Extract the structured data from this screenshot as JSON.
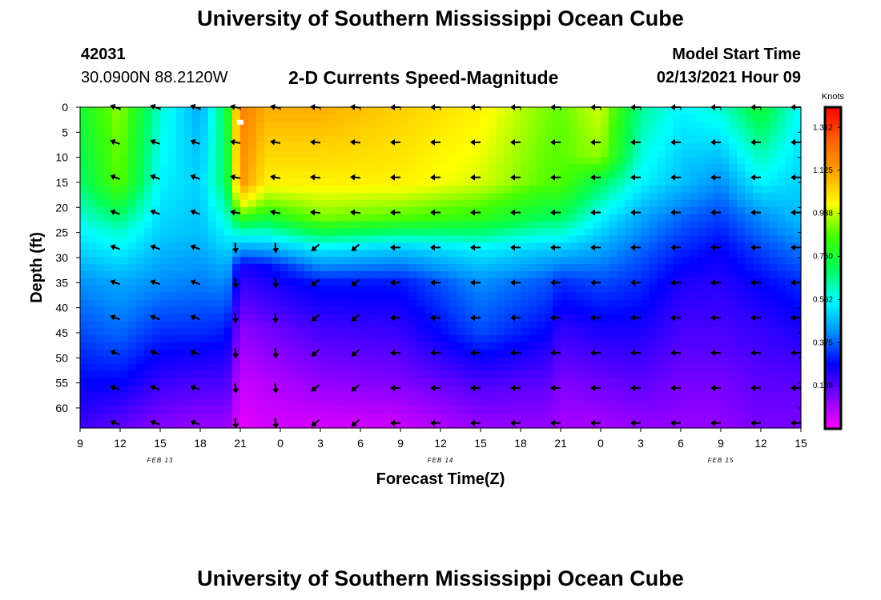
{
  "header": {
    "title": "University of Southern Mississippi Ocean Cube",
    "station_id": "42031",
    "station_location": "30.0900N 88.2120W",
    "plot_title": "2-D Currents Speed-Magnitude",
    "model_start_label": "Model Start Time",
    "model_start_value": "02/13/2021 Hour 09"
  },
  "footer": {
    "title": "University of Southern Mississippi Ocean Cube"
  },
  "chart_data": {
    "type": "heatmap",
    "title": "2-D Currents Speed-Magnitude",
    "xlabel": "Forecast Time(Z)",
    "ylabel": "Depth (ft)",
    "x_tick_labels": [
      "9",
      "12",
      "15",
      "18",
      "21",
      "0",
      "3",
      "6",
      "9",
      "12",
      "15",
      "18",
      "21",
      "0",
      "3",
      "6",
      "9",
      "12",
      "15"
    ],
    "x_hours": [
      0,
      3,
      6,
      9,
      12,
      15,
      18,
      21,
      24,
      27,
      30,
      33,
      36,
      39,
      42,
      45,
      48,
      51,
      54
    ],
    "date_labels": [
      {
        "label": "FEB 13",
        "hour": 6
      },
      {
        "label": "FEB 14",
        "hour": 27
      },
      {
        "label": "FEB 15",
        "hour": 48
      }
    ],
    "y_ticks": [
      0,
      5,
      10,
      15,
      20,
      25,
      30,
      35,
      40,
      45,
      50,
      55,
      60
    ],
    "ylim": [
      0,
      64
    ],
    "y_inverted": true,
    "colorbar": {
      "label": "Knots",
      "tick_labels": [
        "1.312",
        "1.125",
        "0.938",
        "0.750",
        "0.562",
        "0.375",
        "0.188"
      ],
      "range": [
        0,
        1.4
      ],
      "colors": [
        "#ff00ff",
        "#8000ff",
        "#0000ff",
        "#0090ff",
        "#00ffff",
        "#00ff55",
        "#44ff00",
        "#ffff00",
        "#ffa000",
        "#ff6000",
        "#ff0000"
      ]
    },
    "arrow_times": [
      3,
      6,
      9,
      12,
      15,
      18,
      21,
      24,
      27,
      30,
      33,
      36,
      39,
      42,
      45,
      48,
      51,
      54
    ],
    "arrow_depths": [
      0,
      7,
      14,
      21,
      28,
      35,
      42,
      49,
      56,
      63
    ],
    "speed_profiles": [
      {
        "hour": 0,
        "depths": [
          0,
          15,
          25,
          35,
          45,
          55,
          63
        ],
        "speeds": [
          0.75,
          0.68,
          0.55,
          0.42,
          0.35,
          0.28,
          0.22
        ]
      },
      {
        "hour": 3,
        "depths": [
          0,
          15,
          25,
          35,
          45,
          55,
          63
        ],
        "speeds": [
          0.9,
          0.86,
          0.6,
          0.45,
          0.38,
          0.28,
          0.18
        ]
      },
      {
        "hour": 6,
        "depths": [
          0,
          15,
          25,
          35,
          45,
          55,
          63
        ],
        "speeds": [
          0.6,
          0.55,
          0.5,
          0.42,
          0.32,
          0.22,
          0.14
        ]
      },
      {
        "hour": 9,
        "depths": [
          0,
          15,
          25,
          35,
          45,
          55,
          63
        ],
        "speeds": [
          0.45,
          0.5,
          0.48,
          0.4,
          0.32,
          0.2,
          0.12
        ]
      },
      {
        "hour": 11,
        "depths": [
          0,
          15,
          25,
          35,
          45,
          55,
          63
        ],
        "speeds": [
          0.72,
          0.7,
          0.55,
          0.42,
          0.3,
          0.2,
          0.12
        ]
      },
      {
        "hour": 12,
        "depths": [
          0,
          15,
          20,
          25,
          32,
          45,
          55,
          63
        ],
        "speeds": [
          1.2,
          1.15,
          0.95,
          0.6,
          0.25,
          0.12,
          0.06,
          0.03
        ]
      },
      {
        "hour": 14,
        "depths": [
          0,
          15,
          20,
          25,
          32,
          45,
          55,
          63
        ],
        "speeds": [
          1.1,
          1.0,
          0.85,
          0.6,
          0.28,
          0.15,
          0.08,
          0.05
        ]
      },
      {
        "hour": 18,
        "depths": [
          0,
          15,
          22,
          28,
          35,
          45,
          55,
          63
        ],
        "speeds": [
          1.1,
          1.0,
          0.88,
          0.55,
          0.3,
          0.2,
          0.12,
          0.05
        ]
      },
      {
        "hour": 24,
        "depths": [
          0,
          15,
          22,
          28,
          35,
          45,
          55,
          63
        ],
        "speeds": [
          1.05,
          1.0,
          0.85,
          0.5,
          0.3,
          0.22,
          0.14,
          0.06
        ]
      },
      {
        "hour": 30,
        "depths": [
          0,
          15,
          22,
          28,
          35,
          45,
          55,
          63
        ],
        "speeds": [
          1.0,
          0.95,
          0.8,
          0.55,
          0.42,
          0.35,
          0.2,
          0.12
        ]
      },
      {
        "hour": 35,
        "depths": [
          0,
          15,
          22,
          28,
          35,
          45,
          55,
          63
        ],
        "speeds": [
          0.88,
          0.85,
          0.7,
          0.5,
          0.36,
          0.28,
          0.18,
          0.12
        ]
      },
      {
        "hour": 36,
        "depths": [
          0,
          15,
          22,
          28,
          35,
          45,
          55,
          63
        ],
        "speeds": [
          0.86,
          0.85,
          0.7,
          0.5,
          0.32,
          0.22,
          0.14,
          0.1
        ]
      },
      {
        "hour": 39,
        "depths": [
          0,
          10,
          15,
          22,
          28,
          35,
          45,
          55,
          63
        ],
        "speeds": [
          0.95,
          0.9,
          0.7,
          0.55,
          0.45,
          0.35,
          0.25,
          0.16,
          0.1
        ]
      },
      {
        "hour": 42,
        "depths": [
          0,
          15,
          22,
          28,
          35,
          45,
          55,
          63
        ],
        "speeds": [
          0.65,
          0.55,
          0.45,
          0.38,
          0.32,
          0.25,
          0.18,
          0.12
        ]
      },
      {
        "hour": 45,
        "depths": [
          0,
          15,
          22,
          28,
          35,
          45,
          55,
          63
        ],
        "speeds": [
          0.55,
          0.48,
          0.38,
          0.32,
          0.25,
          0.2,
          0.15,
          0.12
        ]
      },
      {
        "hour": 48,
        "depths": [
          0,
          15,
          22,
          28,
          35,
          45,
          55,
          63
        ],
        "speeds": [
          0.6,
          0.42,
          0.34,
          0.28,
          0.24,
          0.2,
          0.15,
          0.12
        ]
      },
      {
        "hour": 51,
        "depths": [
          0,
          15,
          22,
          28,
          35,
          45,
          55,
          63
        ],
        "speeds": [
          0.75,
          0.55,
          0.42,
          0.35,
          0.28,
          0.22,
          0.18,
          0.15
        ]
      },
      {
        "hour": 54,
        "depths": [
          0,
          15,
          22,
          28,
          35,
          45,
          55,
          63
        ],
        "speeds": [
          0.55,
          0.5,
          0.48,
          0.4,
          0.32,
          0.25,
          0.18,
          0.15
        ]
      }
    ],
    "direction_regimes": [
      {
        "hours": [
          0,
          11.5
        ],
        "depths": [
          0,
          64
        ],
        "direction_deg": 200
      },
      {
        "hours": [
          11.5,
          16
        ],
        "depths": [
          0,
          24
        ],
        "direction_deg": 190
      },
      {
        "hours": [
          11.5,
          16
        ],
        "depths": [
          24,
          64
        ],
        "direction_deg": 85
      },
      {
        "hours": [
          16,
          24
        ],
        "depths": [
          0,
          24
        ],
        "direction_deg": 185
      },
      {
        "hours": [
          16,
          24
        ],
        "depths": [
          24,
          64
        ],
        "direction_deg": 140
      },
      {
        "hours": [
          24,
          54
        ],
        "depths": [
          0,
          64
        ],
        "direction_deg": 180
      }
    ],
    "markers": [
      {
        "hour": 12,
        "depth": 3,
        "color": "#ffffff"
      }
    ]
  }
}
